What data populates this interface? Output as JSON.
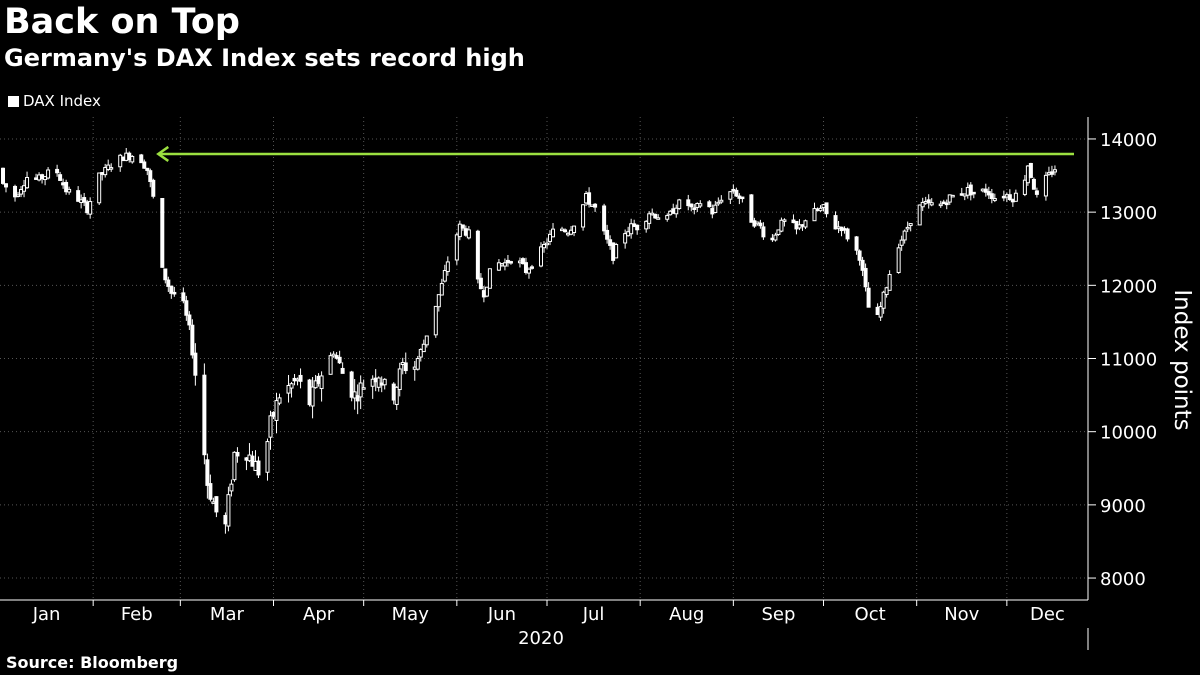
{
  "header": {
    "title": "Back on Top",
    "subtitle": "Germany's DAX Index sets record high"
  },
  "footer": {
    "source": "Source: Bloomberg"
  },
  "colors": {
    "background": "#000000",
    "series": "#ffffff",
    "grid": "#555555",
    "record_line": "#9be040"
  },
  "chart_data": {
    "type": "candlestick",
    "legend": [
      "DAX Index"
    ],
    "legend_position": "top-left",
    "ylabel": "Index points",
    "xlabel": "2020",
    "ylim": [
      7700,
      14300
    ],
    "yticks": [
      8000,
      9000,
      10000,
      11000,
      12000,
      13000,
      14000
    ],
    "xlim": [
      1,
      363
    ],
    "months": [
      {
        "label": "Jan",
        "start": 1
      },
      {
        "label": "Feb",
        "start": 32
      },
      {
        "label": "Mar",
        "start": 61
      },
      {
        "label": "Apr",
        "start": 92
      },
      {
        "label": "May",
        "start": 122
      },
      {
        "label": "Jun",
        "start": 153
      },
      {
        "label": "Jul",
        "start": 183
      },
      {
        "label": "Aug",
        "start": 214
      },
      {
        "label": "Sep",
        "start": 245
      },
      {
        "label": "Oct",
        "start": 275
      },
      {
        "label": "Nov",
        "start": 306
      },
      {
        "label": "Dec",
        "start": 336
      }
    ],
    "grid": true,
    "record_line": {
      "value": 13795,
      "from_day": 53,
      "to_day": 363,
      "arrow": "left"
    },
    "anchors": [
      [
        2,
        13385
      ],
      [
        6,
        13220
      ],
      [
        10,
        13480
      ],
      [
        14,
        13450
      ],
      [
        17,
        13530
      ],
      [
        20,
        13550
      ],
      [
        23,
        13300
      ],
      [
        27,
        13180
      ],
      [
        30,
        13050
      ],
      [
        34,
        13480
      ],
      [
        38,
        13650
      ],
      [
        42,
        13760
      ],
      [
        47,
        13790
      ],
      [
        50,
        13580
      ],
      [
        52,
        13200
      ],
      [
        55,
        12200
      ],
      [
        58,
        11900
      ],
      [
        61,
        11900
      ],
      [
        64,
        11400
      ],
      [
        67,
        10500
      ],
      [
        70,
        9300
      ],
      [
        73,
        8900
      ],
      [
        76,
        8700
      ],
      [
        79,
        9700
      ],
      [
        82,
        9800
      ],
      [
        85,
        9600
      ],
      [
        88,
        9400
      ],
      [
        91,
        10100
      ],
      [
        94,
        10500
      ],
      [
        97,
        10600
      ],
      [
        100,
        10700
      ],
      [
        104,
        10400
      ],
      [
        108,
        10800
      ],
      [
        112,
        11100
      ],
      [
        115,
        10800
      ],
      [
        119,
        10500
      ],
      [
        123,
        10700
      ],
      [
        127,
        10800
      ],
      [
        131,
        10400
      ],
      [
        135,
        10900
      ],
      [
        139,
        10900
      ],
      [
        142,
        11200
      ],
      [
        145,
        11600
      ],
      [
        148,
        12000
      ],
      [
        151,
        12500
      ],
      [
        154,
        12800
      ],
      [
        157,
        12700
      ],
      [
        159,
        12100
      ],
      [
        162,
        11900
      ],
      [
        165,
        12300
      ],
      [
        169,
        12300
      ],
      [
        172,
        12400
      ],
      [
        176,
        12200
      ],
      [
        180,
        12400
      ],
      [
        183,
        12600
      ],
      [
        186,
        12800
      ],
      [
        190,
        12750
      ],
      [
        193,
        12900
      ],
      [
        196,
        13200
      ],
      [
        199,
        13050
      ],
      [
        202,
        12700
      ],
      [
        205,
        12400
      ],
      [
        208,
        12700
      ],
      [
        211,
        12800
      ],
      [
        214,
        12800
      ],
      [
        217,
        13000
      ],
      [
        220,
        12950
      ],
      [
        223,
        12900
      ],
      [
        226,
        13100
      ],
      [
        229,
        13150
      ],
      [
        232,
        13000
      ],
      [
        235,
        13200
      ],
      [
        238,
        13000
      ],
      [
        241,
        13200
      ],
      [
        245,
        13300
      ],
      [
        248,
        13150
      ],
      [
        251,
        12900
      ],
      [
        254,
        12800
      ],
      [
        257,
        12550
      ],
      [
        260,
        12800
      ],
      [
        263,
        12900
      ],
      [
        266,
        12750
      ],
      [
        269,
        12900
      ],
      [
        272,
        13000
      ],
      [
        275,
        13050
      ],
      [
        278,
        12800
      ],
      [
        281,
        12800
      ],
      [
        284,
        12600
      ],
      [
        287,
        12400
      ],
      [
        290,
        11700
      ],
      [
        293,
        11550
      ],
      [
        296,
        12000
      ],
      [
        299,
        12500
      ],
      [
        302,
        12700
      ],
      [
        305,
        13000
      ],
      [
        308,
        13100
      ],
      [
        311,
        13100
      ],
      [
        314,
        13100
      ],
      [
        317,
        13200
      ],
      [
        320,
        13250
      ],
      [
        323,
        13300
      ],
      [
        326,
        13250
      ],
      [
        329,
        13300
      ],
      [
        332,
        13200
      ],
      [
        335,
        13250
      ],
      [
        338,
        13200
      ],
      [
        341,
        13300
      ],
      [
        343,
        13650
      ],
      [
        346,
        13200
      ],
      [
        349,
        13450
      ],
      [
        352,
        13600
      ]
    ]
  }
}
